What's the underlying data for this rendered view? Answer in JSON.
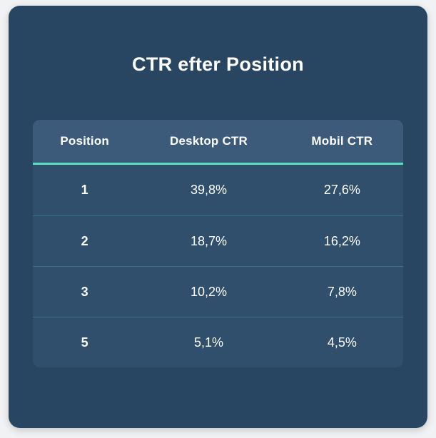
{
  "colors": {
    "page_bg": "#f1f2f3",
    "card_bg": "#284561",
    "header_bg": "#3c5a79",
    "body_bg": "#2f4f6d",
    "accent": "#55e0be",
    "text": "#ffffff"
  },
  "card": {
    "title": "CTR efter Position"
  },
  "table": {
    "columns": [
      "Position",
      "Desktop CTR",
      "Mobil CTR"
    ],
    "rows": [
      [
        "1",
        "39,8%",
        "27,6%"
      ],
      [
        "2",
        "18,7%",
        "16,2%"
      ],
      [
        "3",
        "10,2%",
        "7,8%"
      ],
      [
        "5",
        "5,1%",
        "4,5%"
      ]
    ]
  },
  "chart_data": {
    "type": "table",
    "title": "CTR efter Position",
    "columns": [
      "Position",
      "Desktop CTR",
      "Mobil CTR"
    ],
    "rows": [
      {
        "position": 1,
        "desktop_ctr_pct": 39.8,
        "mobil_ctr_pct": 27.6
      },
      {
        "position": 2,
        "desktop_ctr_pct": 18.7,
        "mobil_ctr_pct": 16.2
      },
      {
        "position": 3,
        "desktop_ctr_pct": 10.2,
        "mobil_ctr_pct": 7.8
      },
      {
        "position": 5,
        "desktop_ctr_pct": 5.1,
        "mobil_ctr_pct": 4.5
      }
    ],
    "notes": "Static statistics card; decimal comma locale (Danish); accent underline below header row"
  }
}
